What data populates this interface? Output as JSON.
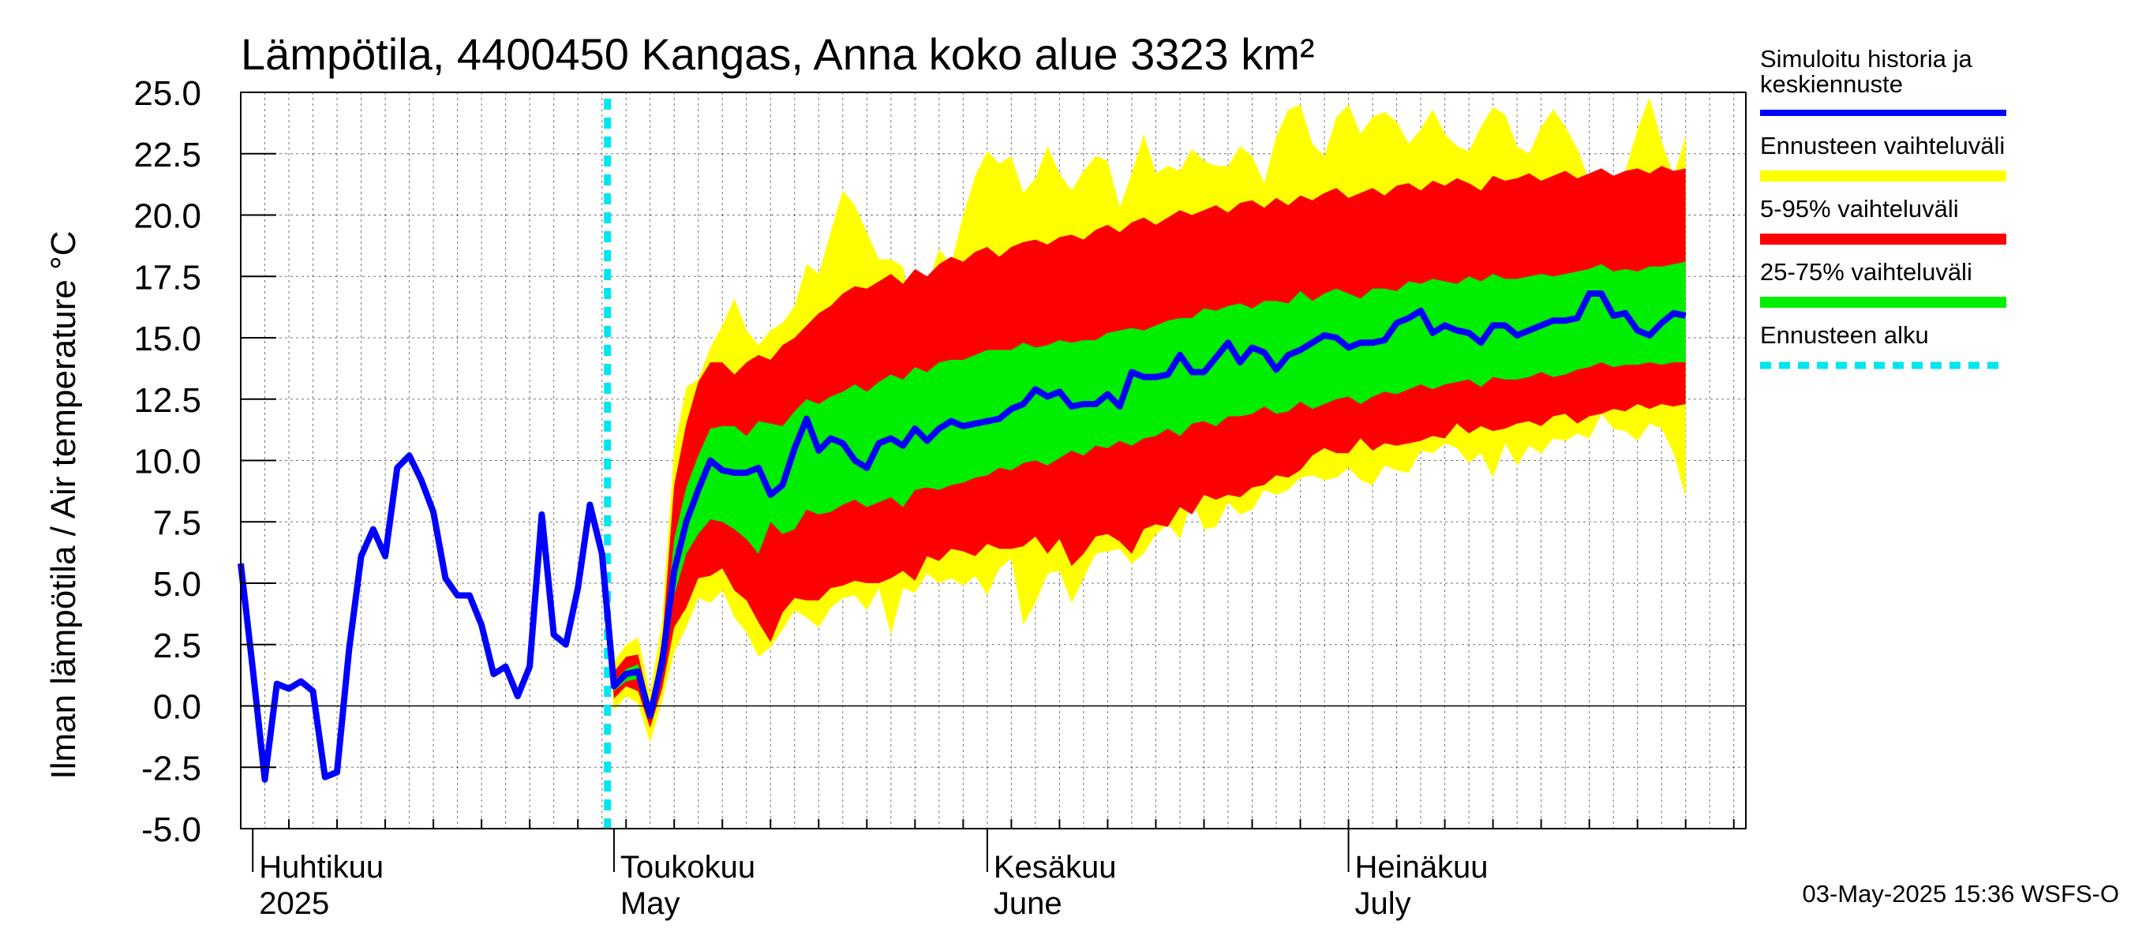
{
  "chart_data": {
    "type": "area",
    "title": "Lämpötila, 4400450 Kangas, Anna koko alue 3323 km²",
    "ylabel": "Ilman lämpötila / Air temperature   °C",
    "ylim": [
      -5.0,
      25.0
    ],
    "yticks": [
      "25.0",
      "22.5",
      "20.0",
      "17.5",
      "15.0",
      "12.5",
      "10.0",
      "7.5",
      "5.0",
      "2.5",
      "0.0",
      "-2.5",
      "-5.0"
    ],
    "x_start": "2025-03-31",
    "x_end": "2025-08-03",
    "forecast_start": "2025-04-30",
    "months": [
      {
        "date": "2025-04-01",
        "fi": "Huhtikuu",
        "en": "2025"
      },
      {
        "date": "2025-05-01",
        "fi": "Toukokuu",
        "en": "May"
      },
      {
        "date": "2025-06-01",
        "fi": "Kesäkuu",
        "en": "June"
      },
      {
        "date": "2025-07-01",
        "fi": "Heinäkuu",
        "en": "July"
      }
    ],
    "history": {
      "start": "2025-03-31",
      "values": [
        5.8,
        1.5,
        -3.0,
        0.9,
        0.7,
        1.0,
        0.6,
        -2.9,
        -2.7,
        2.3,
        6.1,
        7.2,
        6.1,
        9.7,
        10.2,
        9.2,
        7.9,
        5.2,
        4.5,
        4.5,
        3.3,
        1.3,
        1.6,
        0.4,
        1.6,
        7.8,
        2.9,
        2.5,
        4.8,
        8.2,
        6.2
      ]
    },
    "forecast": {
      "start": "2025-04-30",
      "median": [
        6.2,
        0.8,
        1.3,
        1.4,
        -0.4,
        1.8,
        5.5,
        7.5,
        8.8,
        10.0,
        9.6,
        9.5,
        9.5,
        9.7,
        8.6,
        9.0,
        10.5,
        11.7,
        10.4,
        10.9,
        10.7,
        10.0,
        9.7,
        10.7,
        10.9,
        10.6,
        11.3,
        10.8,
        11.3,
        11.6,
        11.4,
        11.5,
        11.6,
        11.7,
        12.1,
        12.3,
        12.9,
        12.6,
        12.8,
        12.2,
        12.3,
        12.3,
        12.7,
        12.2,
        13.6,
        13.4,
        13.4,
        13.5,
        14.3,
        13.6,
        13.6,
        14.2,
        14.8,
        14.0,
        14.6,
        14.4,
        13.7,
        14.3,
        14.5,
        14.8,
        15.1,
        15.0,
        14.6,
        14.8,
        14.8,
        14.9,
        15.6,
        15.8,
        16.1,
        15.2,
        15.5,
        15.3,
        15.2,
        14.8,
        15.5,
        15.5,
        15.1,
        15.3,
        15.5,
        15.7,
        15.7,
        15.8,
        16.8,
        16.8,
        15.9,
        16.0,
        15.3,
        15.1,
        15.6,
        16.0,
        15.9
      ],
      "p25": [
        6.2,
        0.6,
        1.0,
        1.1,
        -0.5,
        1.4,
        4.5,
        6.2,
        7.0,
        7.6,
        7.5,
        7.2,
        6.8,
        6.2,
        7.5,
        7.0,
        7.2,
        8.0,
        7.8,
        7.9,
        8.2,
        8.4,
        8.1,
        8.3,
        8.5,
        8.1,
        8.8,
        8.9,
        8.8,
        9.0,
        9.1,
        9.3,
        9.4,
        9.7,
        9.6,
        9.9,
        10.0,
        9.8,
        10.1,
        10.4,
        10.2,
        10.6,
        10.5,
        10.8,
        10.6,
        10.9,
        11.0,
        11.3,
        11.0,
        11.5,
        11.6,
        11.4,
        11.8,
        11.8,
        11.9,
        12.2,
        11.9,
        12.0,
        12.4,
        12.1,
        12.3,
        12.5,
        12.6,
        12.3,
        12.6,
        12.8,
        12.7,
        12.9,
        13.1,
        12.9,
        13.1,
        13.2,
        13.3,
        13.0,
        13.4,
        13.3,
        13.3,
        13.4,
        13.6,
        13.4,
        13.5,
        13.7,
        13.8,
        14.0,
        13.8,
        13.9,
        13.9,
        14.0,
        13.9,
        14.0,
        14.0
      ],
      "p75": [
        6.2,
        1.0,
        1.5,
        1.7,
        -0.2,
        2.2,
        6.8,
        8.9,
        10.2,
        11.3,
        11.4,
        11.4,
        11.0,
        11.6,
        11.5,
        11.4,
        12.0,
        12.5,
        12.3,
        12.6,
        12.8,
        13.1,
        12.8,
        13.2,
        13.5,
        13.3,
        13.8,
        13.6,
        14.0,
        14.1,
        14.1,
        14.3,
        14.5,
        14.5,
        14.5,
        14.8,
        14.6,
        14.7,
        14.9,
        14.8,
        14.9,
        14.9,
        15.2,
        15.3,
        15.4,
        15.3,
        15.5,
        15.7,
        15.8,
        15.8,
        16.2,
        16.1,
        16.3,
        16.4,
        16.2,
        16.5,
        16.5,
        16.4,
        16.9,
        16.5,
        16.8,
        17.0,
        16.8,
        16.6,
        17.0,
        17.0,
        16.9,
        17.3,
        17.2,
        17.4,
        17.3,
        17.2,
        17.5,
        17.3,
        17.6,
        17.4,
        17.4,
        17.5,
        17.6,
        17.5,
        17.6,
        17.7,
        17.8,
        18.0,
        17.7,
        17.8,
        17.7,
        17.9,
        17.9,
        18.0,
        18.1
      ],
      "p5": [
        6.2,
        0.3,
        0.8,
        0.6,
        -0.9,
        0.7,
        3.2,
        4.0,
        5.2,
        5.3,
        5.6,
        4.7,
        4.3,
        3.4,
        2.6,
        3.8,
        4.4,
        4.3,
        4.3,
        4.8,
        4.9,
        5.1,
        5.0,
        5.0,
        5.2,
        5.5,
        5.1,
        6.1,
        5.9,
        6.4,
        6.3,
        6.1,
        6.6,
        6.4,
        6.4,
        6.5,
        6.9,
        6.2,
        6.8,
        5.7,
        6.2,
        6.9,
        7.0,
        6.7,
        6.2,
        7.2,
        7.4,
        7.3,
        8.1,
        7.8,
        8.6,
        8.4,
        8.6,
        8.5,
        8.9,
        9.0,
        9.4,
        9.3,
        9.6,
        10.2,
        10.5,
        10.3,
        10.3,
        10.9,
        10.4,
        10.7,
        10.6,
        10.7,
        10.8,
        11.0,
        10.9,
        11.5,
        11.1,
        11.4,
        11.2,
        11.3,
        11.5,
        11.6,
        11.4,
        11.8,
        11.9,
        11.5,
        11.8,
        11.9,
        12.1,
        12.0,
        12.3,
        12.1,
        12.3,
        12.2,
        12.3
      ],
      "p95": [
        6.2,
        1.4,
        2.0,
        2.1,
        0.0,
        2.6,
        9.0,
        11.5,
        13.2,
        14.0,
        14.0,
        13.5,
        14.0,
        14.3,
        14.1,
        14.7,
        15.0,
        15.5,
        16.0,
        16.3,
        16.8,
        17.1,
        17.0,
        17.3,
        17.6,
        17.2,
        17.8,
        17.5,
        18.0,
        18.3,
        18.1,
        18.5,
        18.7,
        18.3,
        18.7,
        18.9,
        19.0,
        18.8,
        19.1,
        19.2,
        19.0,
        19.4,
        19.6,
        19.3,
        19.7,
        19.9,
        19.6,
        19.9,
        20.2,
        20.0,
        20.2,
        20.4,
        20.1,
        20.5,
        20.6,
        20.3,
        20.7,
        20.4,
        20.8,
        20.6,
        20.9,
        21.1,
        20.7,
        20.9,
        21.1,
        20.8,
        21.2,
        21.3,
        21.0,
        21.4,
        21.2,
        21.5,
        21.3,
        21.0,
        21.6,
        21.4,
        21.5,
        21.7,
        21.4,
        21.6,
        21.8,
        21.5,
        21.7,
        21.9,
        21.6,
        21.8,
        21.9,
        21.7,
        22.0,
        21.8,
        21.9
      ],
      "min": [
        6.2,
        -0.2,
        0.4,
        0.1,
        -1.5,
        0.2,
        2.2,
        3.2,
        4.4,
        4.2,
        4.7,
        3.6,
        3.0,
        2.0,
        2.4,
        3.1,
        3.9,
        3.6,
        3.2,
        4.0,
        4.4,
        4.5,
        3.9,
        4.8,
        2.9,
        4.8,
        4.6,
        5.4,
        5.0,
        5.2,
        4.9,
        5.3,
        4.5,
        5.6,
        6.0,
        3.3,
        4.2,
        5.4,
        5.5,
        4.2,
        5.2,
        6.2,
        6.3,
        6.4,
        5.8,
        6.2,
        7.0,
        7.4,
        6.8,
        8.4,
        7.2,
        7.3,
        8.3,
        7.8,
        8.0,
        8.8,
        8.6,
        8.8,
        9.3,
        9.4,
        9.2,
        9.3,
        9.7,
        9.2,
        9.0,
        9.8,
        9.6,
        9.5,
        10.4,
        10.3,
        10.7,
        10.5,
        9.9,
        10.3,
        9.3,
        10.7,
        9.8,
        10.6,
        10.3,
        10.9,
        10.8,
        11.1,
        10.9,
        11.9,
        11.3,
        11.2,
        10.8,
        11.5,
        11.3,
        10.3,
        8.5
      ],
      "max": [
        6.2,
        1.8,
        2.5,
        2.8,
        0.5,
        3.5,
        10.5,
        13.0,
        13.3,
        14.6,
        15.5,
        16.6,
        15.3,
        14.7,
        15.3,
        15.6,
        16.3,
        18.0,
        17.6,
        19.3,
        21.0,
        20.4,
        19.3,
        18.2,
        18.2,
        17.9,
        15.2,
        17.1,
        18.6,
        18.0,
        20.0,
        21.6,
        22.6,
        22.1,
        22.4,
        20.9,
        21.5,
        22.8,
        21.7,
        21.0,
        21.8,
        22.4,
        22.2,
        20.3,
        21.7,
        23.3,
        21.7,
        22.0,
        21.8,
        22.7,
        22.2,
        22.0,
        22.0,
        22.8,
        22.4,
        21.3,
        23.2,
        24.3,
        24.5,
        22.9,
        22.4,
        24.0,
        24.5,
        23.3,
        24.0,
        24.2,
        23.8,
        22.9,
        23.5,
        24.3,
        23.3,
        22.8,
        22.6,
        23.6,
        24.4,
        24.1,
        22.8,
        22.5,
        23.6,
        24.3,
        23.6,
        22.7,
        21.4,
        21.0,
        21.2,
        21.8,
        23.5,
        24.8,
        23.0,
        21.6,
        23.2
      ]
    },
    "legend": [
      {
        "label": "Simuloitu historia ja",
        "label2": "keskiennuste",
        "color": "#0000ff",
        "kind": "line"
      },
      {
        "label": "Ennusteen vaihteluväli",
        "label2": "",
        "color": "#ffff00",
        "kind": "band"
      },
      {
        "label": "5-95% vaihteluväli",
        "label2": "",
        "color": "#ff0000",
        "kind": "band"
      },
      {
        "label": "25-75% vaihteluväli",
        "label2": "",
        "color": "#00ee00",
        "kind": "band"
      },
      {
        "label": "Ennusteen alku",
        "label2": "",
        "color": "#00e5ee",
        "kind": "dash"
      }
    ],
    "legend_position": "right",
    "grid": true,
    "timestamp": "03-May-2025 15:36 WSFS-O"
  }
}
